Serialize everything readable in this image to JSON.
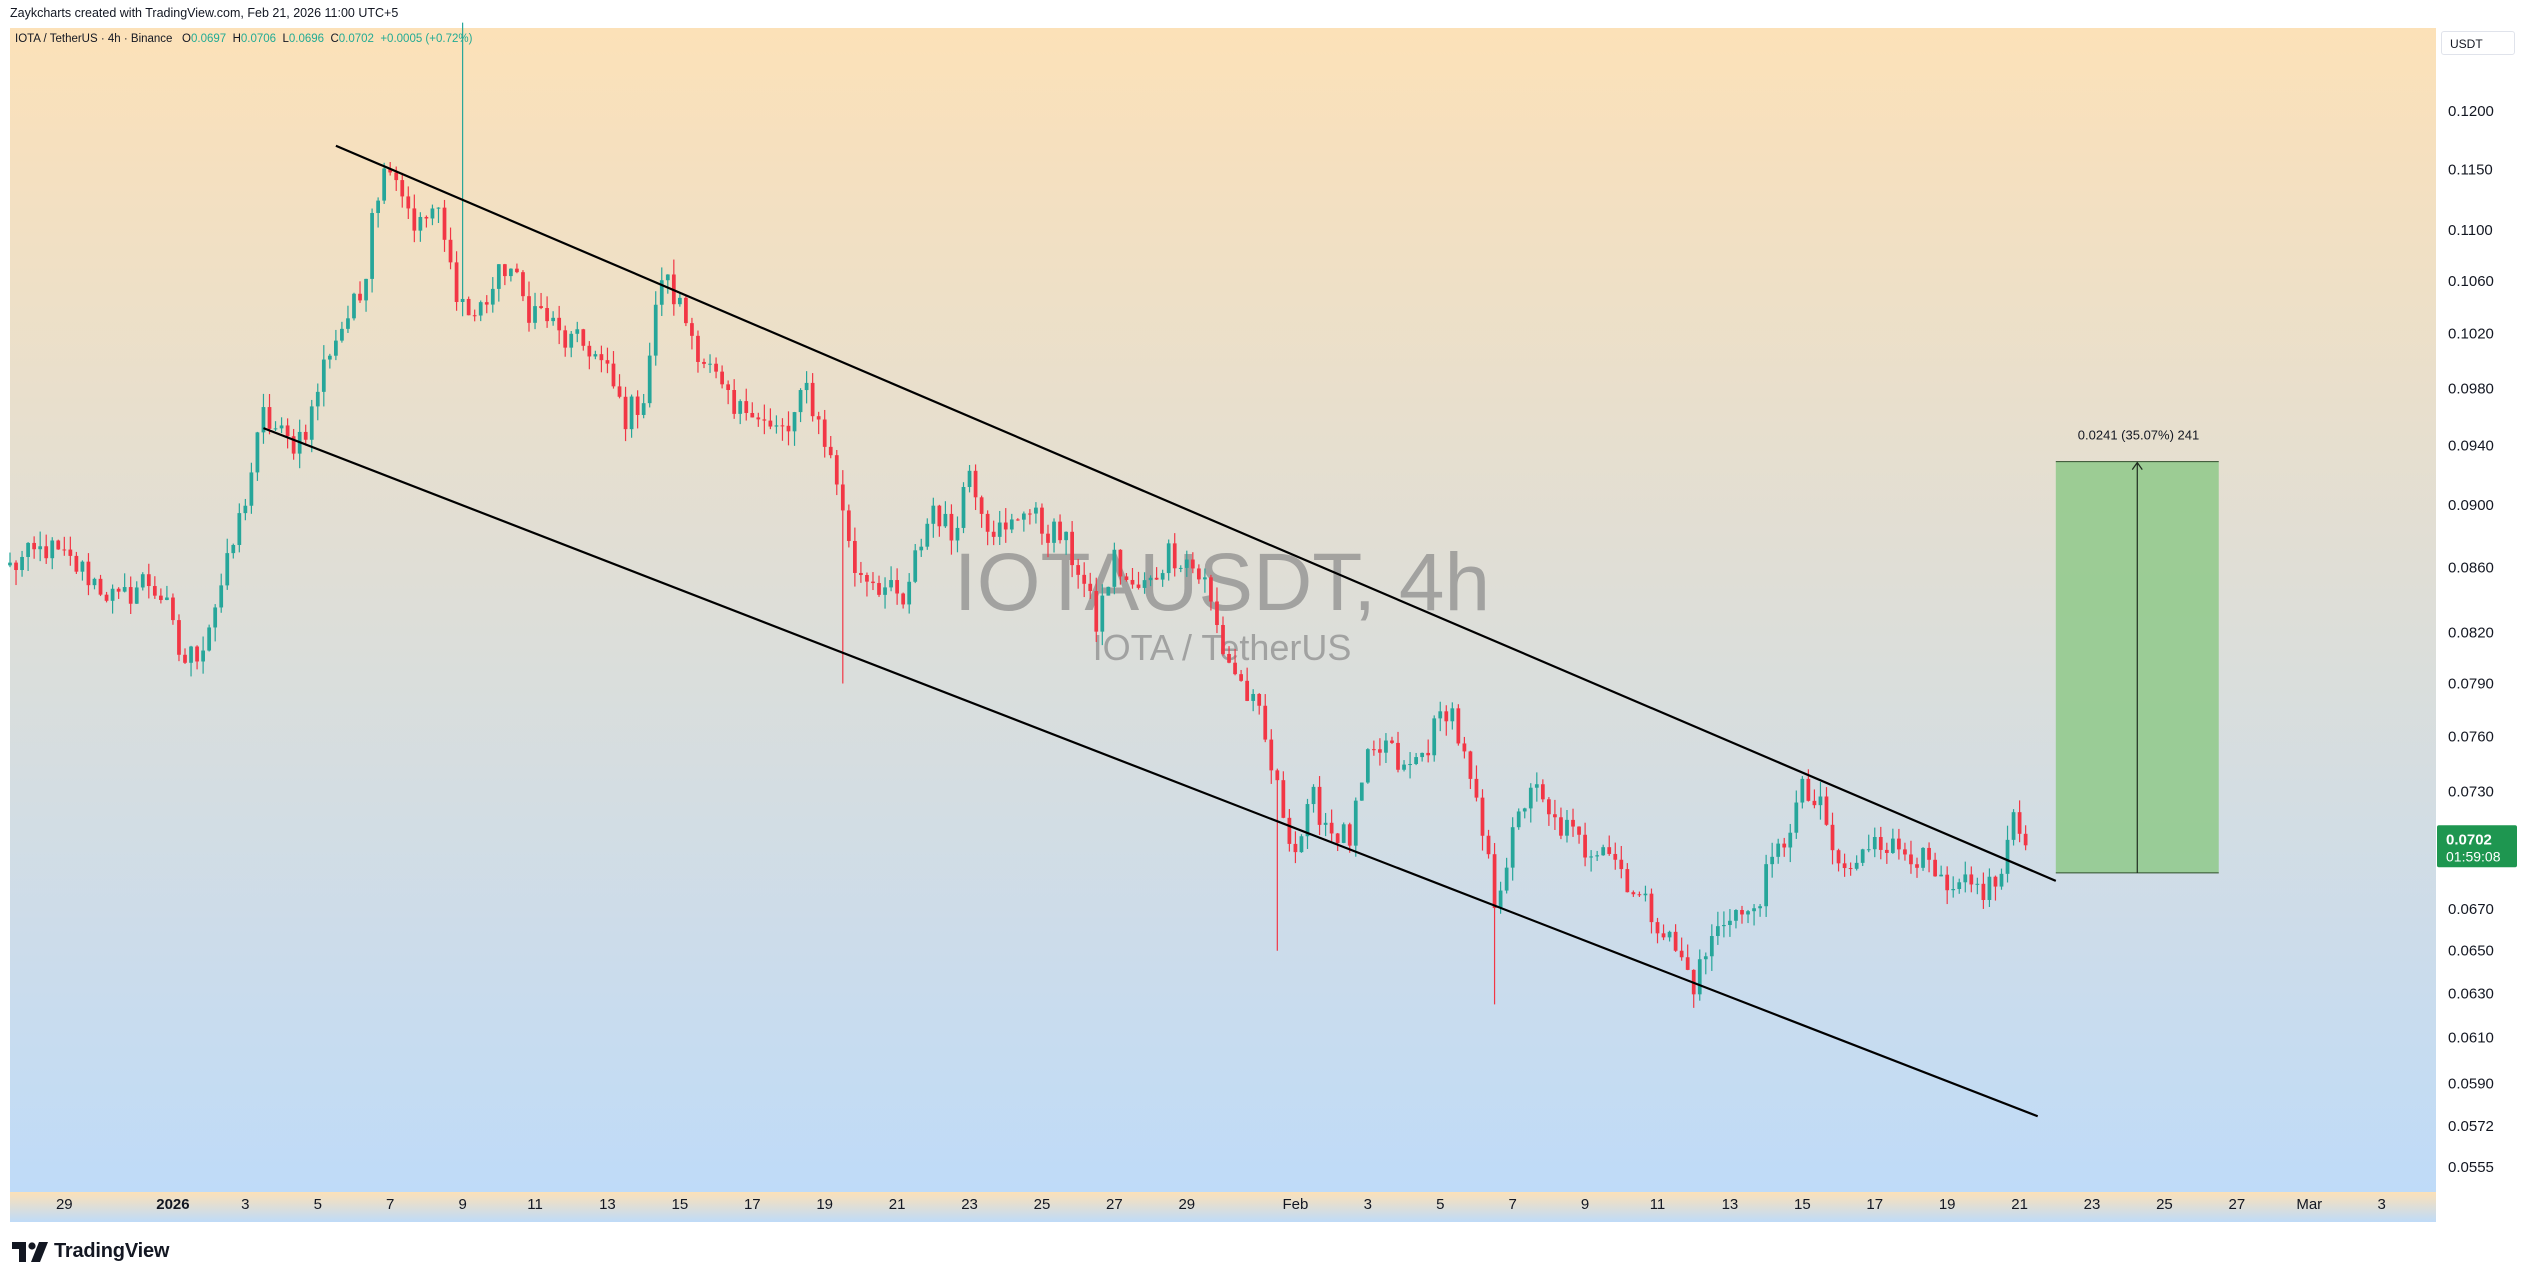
{
  "header": {
    "credit": "Zaykcharts created with TradingView.com, Feb 21, 2026 11:00 UTC+5"
  },
  "legend": {
    "symbol": "IOTA / TetherUS · 4h · Binance",
    "o_label": "O",
    "o_value": "0.0697",
    "h_label": "H",
    "h_value": "0.0706",
    "l_label": "L",
    "l_value": "0.0696",
    "c_label": "C",
    "c_value": "0.0702",
    "change": "+0.0005 (+0.72%)"
  },
  "currency_label": "USDT",
  "watermark": {
    "main": "IOTAUSDT, 4h",
    "sub": "IOTA / TetherUS"
  },
  "price_label": {
    "value": "0.0702",
    "countdown": "01:59:08"
  },
  "measure_label": "0.0241 (35.07%) 241",
  "brand": "TradingView",
  "colors": {
    "up": "#26a69a",
    "up_alt": "#089981",
    "down": "#f23645",
    "bg_top": "#fce1b8",
    "bg_bottom": "#bfdbf8",
    "target_box": "#8fc98a",
    "price_tag": "#1e9650"
  },
  "chart_data": {
    "type": "candlestick",
    "symbol": "IOTAUSDT",
    "timeframe": "4h",
    "y_ticks": [
      0.12,
      0.115,
      0.11,
      0.106,
      0.102,
      0.098,
      0.094,
      0.09,
      0.086,
      0.082,
      0.079,
      0.076,
      0.073,
      0.07,
      0.067,
      0.065,
      0.063,
      0.061,
      0.059,
      0.0572,
      0.0555
    ],
    "y_tick_labels": [
      "0.1200",
      "0.1150",
      "0.1100",
      "0.1060",
      "0.1020",
      "0.0980",
      "0.0940",
      "0.0900",
      "0.0860",
      "0.0820",
      "0.0790",
      "0.0760",
      "0.0730",
      "0.0700",
      "0.0670",
      "0.0650",
      "0.0630",
      "0.0610",
      "0.0590",
      "0.0572",
      "0.0555"
    ],
    "y_scale": "log",
    "x_ticks": [
      {
        "label": "29",
        "date": "2025-12-29",
        "bold": false
      },
      {
        "label": "2026",
        "date": "2026-01-01",
        "bold": true
      },
      {
        "label": "3",
        "date": "2026-01-03",
        "bold": false
      },
      {
        "label": "5",
        "date": "2026-01-05",
        "bold": false
      },
      {
        "label": "7",
        "date": "2026-01-07",
        "bold": false
      },
      {
        "label": "9",
        "date": "2026-01-09",
        "bold": false
      },
      {
        "label": "11",
        "date": "2026-01-11",
        "bold": false
      },
      {
        "label": "13",
        "date": "2026-01-13",
        "bold": false
      },
      {
        "label": "15",
        "date": "2026-01-15",
        "bold": false
      },
      {
        "label": "17",
        "date": "2026-01-17",
        "bold": false
      },
      {
        "label": "19",
        "date": "2026-01-19",
        "bold": false
      },
      {
        "label": "21",
        "date": "2026-01-21",
        "bold": false
      },
      {
        "label": "23",
        "date": "2026-01-23",
        "bold": false
      },
      {
        "label": "25",
        "date": "2026-01-25",
        "bold": false
      },
      {
        "label": "27",
        "date": "2026-01-27",
        "bold": false
      },
      {
        "label": "29",
        "date": "2026-01-29",
        "bold": false
      },
      {
        "label": "Feb",
        "date": "2026-02-01",
        "bold": false
      },
      {
        "label": "3",
        "date": "2026-02-03",
        "bold": false
      },
      {
        "label": "5",
        "date": "2026-02-05",
        "bold": false
      },
      {
        "label": "7",
        "date": "2026-02-07",
        "bold": false
      },
      {
        "label": "9",
        "date": "2026-02-09",
        "bold": false
      },
      {
        "label": "11",
        "date": "2026-02-11",
        "bold": false
      },
      {
        "label": "13",
        "date": "2026-02-13",
        "bold": false
      },
      {
        "label": "15",
        "date": "2026-02-15",
        "bold": false
      },
      {
        "label": "17",
        "date": "2026-02-17",
        "bold": false
      },
      {
        "label": "19",
        "date": "2026-02-19",
        "bold": false
      },
      {
        "label": "21",
        "date": "2026-02-21",
        "bold": false
      },
      {
        "label": "23",
        "date": "2026-02-23",
        "bold": false
      },
      {
        "label": "25",
        "date": "2026-02-25",
        "bold": false
      },
      {
        "label": "27",
        "date": "2026-02-27",
        "bold": false
      },
      {
        "label": "Mar",
        "date": "2026-03-01",
        "bold": false
      },
      {
        "label": "3",
        "date": "2026-03-03",
        "bold": false
      }
    ],
    "x_range": [
      "2025-12-27T12:00",
      "2026-03-04T12:00"
    ],
    "y_range": [
      0.0545,
      0.1275
    ],
    "close_path": [
      {
        "date": "2025-12-27T12:00",
        "close": 0.086
      },
      {
        "date": "2025-12-28T12:00",
        "close": 0.0872
      },
      {
        "date": "2025-12-29T12:00",
        "close": 0.0858
      },
      {
        "date": "2025-12-30T12:00",
        "close": 0.0838
      },
      {
        "date": "2025-12-31T06:00",
        "close": 0.0853
      },
      {
        "date": "2025-12-31T18:00",
        "close": 0.084
      },
      {
        "date": "2026-01-01T06:00",
        "close": 0.0802
      },
      {
        "date": "2026-01-01T18:00",
        "close": 0.081
      },
      {
        "date": "2026-01-02T12:00",
        "close": 0.086
      },
      {
        "date": "2026-01-03T00:00",
        "close": 0.0905
      },
      {
        "date": "2026-01-03T12:00",
        "close": 0.096
      },
      {
        "date": "2026-01-04T06:00",
        "close": 0.094
      },
      {
        "date": "2026-01-04T18:00",
        "close": 0.0955
      },
      {
        "date": "2026-01-05T06:00",
        "close": 0.1005
      },
      {
        "date": "2026-01-05T18:00",
        "close": 0.103
      },
      {
        "date": "2026-01-06T06:00",
        "close": 0.105
      },
      {
        "date": "2026-01-06T12:00",
        "close": 0.112
      },
      {
        "date": "2026-01-07T00:00",
        "close": 0.116
      },
      {
        "date": "2026-01-07T18:00",
        "close": 0.11
      },
      {
        "date": "2026-01-08T06:00",
        "close": 0.112
      },
      {
        "date": "2026-01-08T18:00",
        "close": 0.106
      },
      {
        "date": "2026-01-09T06:00",
        "close": 0.103
      },
      {
        "date": "2026-01-09T18:00",
        "close": 0.105
      },
      {
        "date": "2026-01-10T06:00",
        "close": 0.1075
      },
      {
        "date": "2026-01-10T18:00",
        "close": 0.104
      },
      {
        "date": "2026-01-11T06:00",
        "close": 0.1035
      },
      {
        "date": "2026-01-11T18:00",
        "close": 0.1015
      },
      {
        "date": "2026-01-12T12:00",
        "close": 0.101
      },
      {
        "date": "2026-01-13T00:00",
        "close": 0.099
      },
      {
        "date": "2026-01-13T12:00",
        "close": 0.096
      },
      {
        "date": "2026-01-14T00:00",
        "close": 0.0975
      },
      {
        "date": "2026-01-14T06:00",
        "close": 0.102
      },
      {
        "date": "2026-01-14T12:00",
        "close": 0.1065
      },
      {
        "date": "2026-01-15T00:00",
        "close": 0.104
      },
      {
        "date": "2026-01-15T12:00",
        "close": 0.101
      },
      {
        "date": "2026-01-16T00:00",
        "close": 0.0985
      },
      {
        "date": "2026-01-16T12:00",
        "close": 0.096
      },
      {
        "date": "2026-01-17T00:00",
        "close": 0.097
      },
      {
        "date": "2026-01-17T12:00",
        "close": 0.095
      },
      {
        "date": "2026-01-18T00:00",
        "close": 0.095
      },
      {
        "date": "2026-01-18T12:00",
        "close": 0.098
      },
      {
        "date": "2026-01-19T00:00",
        "close": 0.0945
      },
      {
        "date": "2026-01-19T12:00",
        "close": 0.09
      },
      {
        "date": "2026-01-19T18:00",
        "close": 0.086
      },
      {
        "date": "2026-01-20T06:00",
        "close": 0.0855
      },
      {
        "date": "2026-01-20T18:00",
        "close": 0.0845
      },
      {
        "date": "2026-01-21T06:00",
        "close": 0.0835
      },
      {
        "date": "2026-01-21T12:00",
        "close": 0.0865
      },
      {
        "date": "2026-01-22T00:00",
        "close": 0.09
      },
      {
        "date": "2026-01-22T12:00",
        "close": 0.088
      },
      {
        "date": "2026-01-23T00:00",
        "close": 0.0925
      },
      {
        "date": "2026-01-23T12:00",
        "close": 0.089
      },
      {
        "date": "2026-01-24T00:00",
        "close": 0.088
      },
      {
        "date": "2026-01-24T12:00",
        "close": 0.09
      },
      {
        "date": "2026-01-25T00:00",
        "close": 0.0885
      },
      {
        "date": "2026-01-25T12:00",
        "close": 0.088
      },
      {
        "date": "2026-01-26T00:00",
        "close": 0.086
      },
      {
        "date": "2026-01-26T12:00",
        "close": 0.0825
      },
      {
        "date": "2026-01-27T00:00",
        "close": 0.0865
      },
      {
        "date": "2026-01-27T12:00",
        "close": 0.0845
      },
      {
        "date": "2026-01-28T00:00",
        "close": 0.085
      },
      {
        "date": "2026-01-28T12:00",
        "close": 0.087
      },
      {
        "date": "2026-01-29T00:00",
        "close": 0.0865
      },
      {
        "date": "2026-01-29T12:00",
        "close": 0.085
      },
      {
        "date": "2026-01-30T00:00",
        "close": 0.081
      },
      {
        "date": "2026-01-30T12:00",
        "close": 0.079
      },
      {
        "date": "2026-01-31T00:00",
        "close": 0.077
      },
      {
        "date": "2026-01-31T12:00",
        "close": 0.073
      },
      {
        "date": "2026-02-01T00:00",
        "close": 0.07
      },
      {
        "date": "2026-02-01T12:00",
        "close": 0.0725
      },
      {
        "date": "2026-02-02T00:00",
        "close": 0.071
      },
      {
        "date": "2026-02-02T12:00",
        "close": 0.0705
      },
      {
        "date": "2026-02-03T00:00",
        "close": 0.0745
      },
      {
        "date": "2026-02-03T12:00",
        "close": 0.0755
      },
      {
        "date": "2026-02-04T00:00",
        "close": 0.074
      },
      {
        "date": "2026-02-04T12:00",
        "close": 0.075
      },
      {
        "date": "2026-02-05T00:00",
        "close": 0.077
      },
      {
        "date": "2026-02-05T06:00",
        "close": 0.078
      },
      {
        "date": "2026-02-05T18:00",
        "close": 0.074
      },
      {
        "date": "2026-02-06T06:00",
        "close": 0.07
      },
      {
        "date": "2026-02-06T12:00",
        "close": 0.0675
      },
      {
        "date": "2026-02-07T00:00",
        "close": 0.0705
      },
      {
        "date": "2026-02-07T12:00",
        "close": 0.0735
      },
      {
        "date": "2026-02-08T00:00",
        "close": 0.0715
      },
      {
        "date": "2026-02-08T12:00",
        "close": 0.071
      },
      {
        "date": "2026-02-09T00:00",
        "close": 0.07
      },
      {
        "date": "2026-02-09T12:00",
        "close": 0.0705
      },
      {
        "date": "2026-02-10T00:00",
        "close": 0.069
      },
      {
        "date": "2026-02-10T12:00",
        "close": 0.0675
      },
      {
        "date": "2026-02-11T00:00",
        "close": 0.0665
      },
      {
        "date": "2026-02-11T12:00",
        "close": 0.065
      },
      {
        "date": "2026-02-12T00:00",
        "close": 0.0635
      },
      {
        "date": "2026-02-12T12:00",
        "close": 0.0655
      },
      {
        "date": "2026-02-13T00:00",
        "close": 0.067
      },
      {
        "date": "2026-02-13T12:00",
        "close": 0.0665
      },
      {
        "date": "2026-02-14T00:00",
        "close": 0.0685
      },
      {
        "date": "2026-02-14T12:00",
        "close": 0.0705
      },
      {
        "date": "2026-02-15T00:00",
        "close": 0.073
      },
      {
        "date": "2026-02-15T12:00",
        "close": 0.072
      },
      {
        "date": "2026-02-16T00:00",
        "close": 0.069
      },
      {
        "date": "2026-02-16T12:00",
        "close": 0.069
      },
      {
        "date": "2026-02-17T00:00",
        "close": 0.071
      },
      {
        "date": "2026-02-17T12:00",
        "close": 0.07
      },
      {
        "date": "2026-02-18T00:00",
        "close": 0.07
      },
      {
        "date": "2026-02-18T12:00",
        "close": 0.069
      },
      {
        "date": "2026-02-19T00:00",
        "close": 0.0675
      },
      {
        "date": "2026-02-19T12:00",
        "close": 0.068
      },
      {
        "date": "2026-02-20T00:00",
        "close": 0.068
      },
      {
        "date": "2026-02-20T12:00",
        "close": 0.0685
      },
      {
        "date": "2026-02-20T18:00",
        "close": 0.0715
      },
      {
        "date": "2026-02-21T06:00",
        "close": 0.0702
      }
    ],
    "extreme_wicks": [
      {
        "date": "2026-01-09T00:00",
        "high": 0.128
      },
      {
        "date": "2026-01-19T12:00",
        "low": 0.079
      },
      {
        "date": "2026-01-31T12:00",
        "high": 0.073,
        "low": 0.065
      },
      {
        "date": "2026-02-06T12:00",
        "low": 0.0625
      }
    ],
    "trendlines": [
      {
        "name": "channel-upper",
        "start": {
          "date": "2026-01-05T12:00",
          "price": 0.117
        },
        "end": {
          "date": "2026-02-22T00:00",
          "price": 0.0684
        }
      },
      {
        "name": "channel-lower",
        "start": {
          "date": "2026-01-03T12:00",
          "price": 0.0952
        },
        "end": {
          "date": "2026-02-21T12:00",
          "price": 0.0576
        }
      }
    ],
    "target_box": {
      "date_start": "2026-02-22T00:00",
      "date_end": "2026-02-26T12:00",
      "price_low": 0.0688,
      "price_high": 0.0929
    },
    "target_measure": {
      "change": 0.0241,
      "percent": 35.07,
      "ticks": 241
    },
    "last_price": 0.0702
  }
}
